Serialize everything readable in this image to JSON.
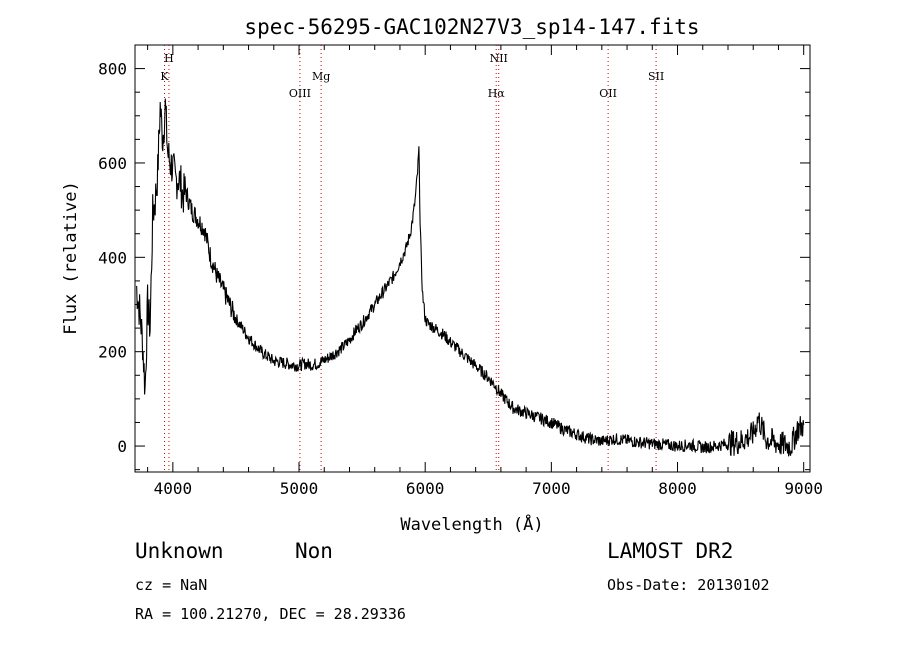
{
  "chart_data": {
    "type": "line",
    "title": "spec-56295-GAC102N27V3_sp14-147.fits",
    "xlabel": "Wavelength (Å)",
    "ylabel": "Flux (relative)",
    "xlim": [
      3700,
      9050
    ],
    "ylim": [
      -55,
      850
    ],
    "xticks": [
      4000,
      5000,
      6000,
      7000,
      8000,
      9000
    ],
    "yticks": [
      0,
      200,
      400,
      600,
      800
    ],
    "grid": false,
    "line_color": "#000000",
    "marker_color": "#cc0000",
    "emission_lines": [
      {
        "name": "K",
        "wavelength": 3934
      },
      {
        "name": "H",
        "wavelength": 3969
      },
      {
        "name": "OIII",
        "wavelength": 5007
      },
      {
        "name": "Mg",
        "wavelength": 5175
      },
      {
        "name": "Hα",
        "wavelength": 6563
      },
      {
        "name": "NII",
        "wavelength": 6583
      },
      {
        "name": "OII",
        "wavelength": 7450
      },
      {
        "name": "SII",
        "wavelength": 7830
      }
    ],
    "series": [
      {
        "x": [
          3710,
          3740,
          3760,
          3780,
          3800,
          3820,
          3840,
          3860,
          3880,
          3900,
          3920,
          3940,
          3960,
          3980,
          4000,
          4020,
          4040,
          4060,
          4080,
          4100,
          4150,
          4200,
          4250,
          4300,
          4350,
          4400,
          4450,
          4500,
          4550,
          4600,
          4650,
          4700,
          4750,
          4800,
          4850,
          4900,
          4950,
          5000,
          5050,
          5100,
          5150,
          5200,
          5250,
          5300,
          5350,
          5400,
          5450,
          5500,
          5550,
          5600,
          5650,
          5700,
          5750,
          5800,
          5850,
          5880,
          5900,
          5920,
          5940,
          5950,
          5960,
          5970,
          5980,
          6000,
          6020,
          6050,
          6100,
          6150,
          6200,
          6300,
          6400,
          6500,
          6550,
          6600,
          6650,
          6700,
          6800,
          6900,
          7000,
          7100,
          7200,
          7300,
          7400,
          7500,
          7600,
          7700,
          7800,
          7900,
          8000,
          8100,
          8200,
          8300,
          8400,
          8500,
          8600,
          8640,
          8700,
          8800,
          8900,
          8950,
          9000
        ],
        "y": [
          340,
          280,
          220,
          120,
          300,
          250,
          490,
          520,
          580,
          720,
          650,
          720,
          620,
          600,
          590,
          560,
          570,
          560,
          530,
          540,
          500,
          480,
          460,
          400,
          360,
          330,
          300,
          270,
          250,
          230,
          215,
          200,
          190,
          180,
          178,
          175,
          172,
          170,
          175,
          172,
          175,
          182,
          190,
          200,
          210,
          225,
          245,
          260,
          280,
          300,
          320,
          340,
          360,
          390,
          420,
          450,
          480,
          520,
          580,
          630,
          480,
          380,
          320,
          270,
          260,
          255,
          245,
          235,
          220,
          195,
          170,
          145,
          130,
          110,
          95,
          80,
          70,
          60,
          50,
          35,
          25,
          15,
          10,
          15,
          12,
          8,
          5,
          3,
          0,
          2,
          -3,
          0,
          5,
          10,
          25,
          60,
          15,
          5,
          0,
          35,
          45
        ]
      }
    ]
  },
  "footer": {
    "class_label": "Unknown",
    "subclass_label": "Non",
    "survey": "LAMOST DR2",
    "redshift_text": "cz = NaN",
    "obs_date_text": "Obs-Date: 20130102",
    "coords_text": "RA = 100.21270, DEC =  28.29336"
  }
}
